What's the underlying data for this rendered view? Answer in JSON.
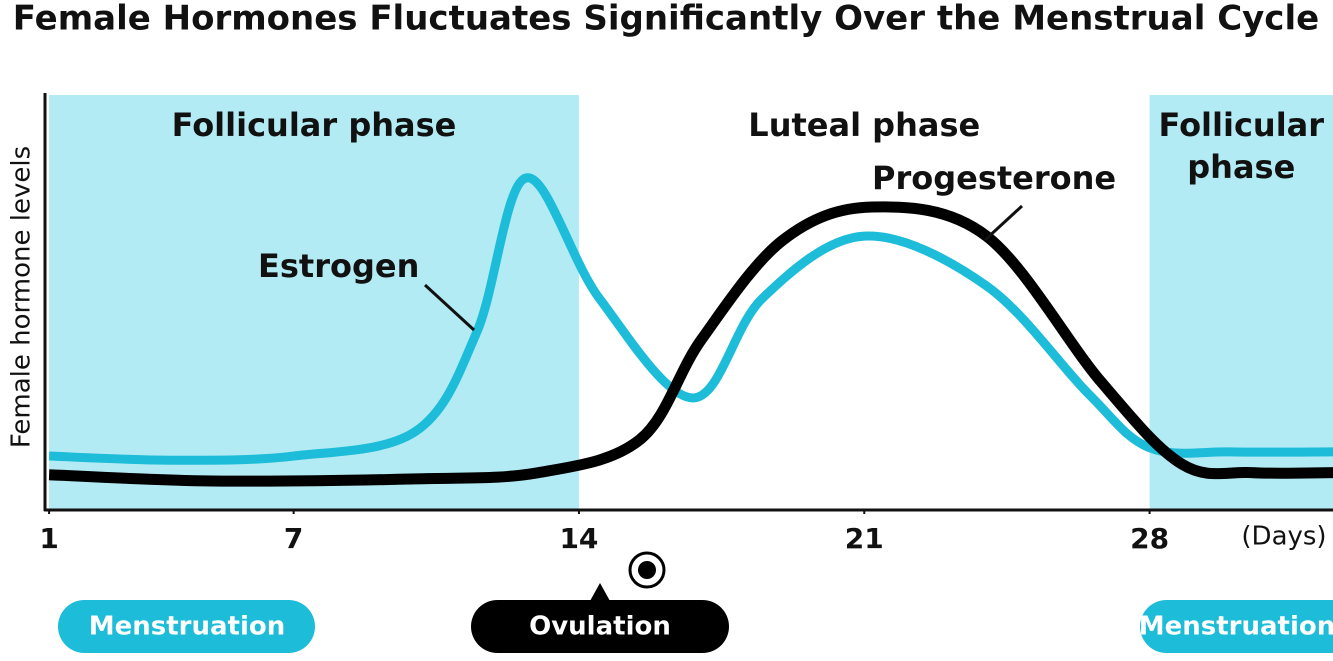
{
  "chart_data": {
    "type": "line",
    "title": "Female Hormones Fluctuates Significantly Over the Menstrual Cycle",
    "y_label": "Female hormone levels",
    "x_label": "(Days)",
    "xlim": [
      0.9,
      32.5
    ],
    "ylim": [
      0,
      100
    ],
    "xticks": [
      1,
      7,
      14,
      21,
      28
    ],
    "phases": [
      {
        "label": "Follicular phase",
        "start": 1,
        "end": 14,
        "shaded": true
      },
      {
        "label": "Luteal phase",
        "start": 14,
        "end": 28,
        "shaded": false
      },
      {
        "label": "Follicular phase",
        "start": 28,
        "end": 32.5,
        "shaded": true
      }
    ],
    "shade_color": "#b3ebf4",
    "series": [
      {
        "name": "Estrogen",
        "color": "#1dbcd8",
        "x": [
          1,
          4,
          7,
          10,
          11.5,
          12.7,
          14.5,
          16.8,
          18.5,
          21,
          24,
          26.5,
          28,
          30,
          32.5
        ],
        "values": [
          13,
          12,
          13,
          19,
          43,
          80,
          51,
          27,
          51,
          66,
          54,
          28,
          15,
          14,
          14
        ]
      },
      {
        "name": "Progesterone",
        "color": "#000000",
        "x": [
          1,
          5,
          10,
          13,
          15.5,
          17,
          19,
          21.2,
          24,
          26.8,
          28.8,
          30.5,
          32.5
        ],
        "values": [
          8.5,
          7,
          7.5,
          9,
          17,
          41,
          65,
          73,
          66,
          31,
          11,
          9,
          9
        ]
      }
    ],
    "markers": [
      "Menstruation",
      "Ovulation",
      "Menstruation"
    ]
  }
}
